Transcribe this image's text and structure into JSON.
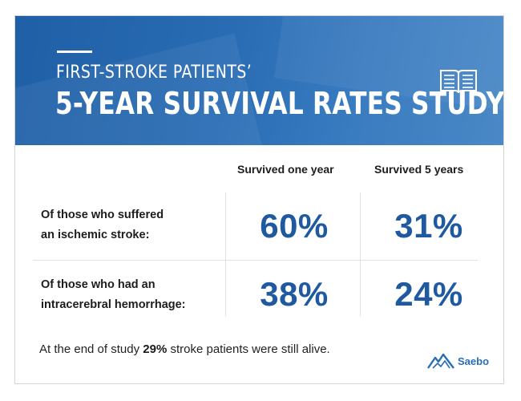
{
  "header": {
    "title_line1": "FIRST-STROKE PATIENTS’",
    "title_line2": "5-YEAR SURVIVAL RATES STUDY",
    "icon": "open-book-icon"
  },
  "table": {
    "columns": [
      "Survived one year",
      "Survived 5 years"
    ],
    "rows": [
      {
        "label_line1": "Of those who suffered",
        "label_line2": "an ischemic stroke:",
        "values": [
          "60%",
          "31%"
        ]
      },
      {
        "label_line1": "Of those who had an",
        "label_line2": "intracerebral hemorrhage:",
        "values": [
          "38%",
          "24%"
        ]
      }
    ]
  },
  "footer": {
    "text_before": "At the end of study ",
    "highlight": "29%",
    "text_after": " stroke patients were still alive."
  },
  "logo": {
    "name": "Saebo",
    "icon": "mountain-logo-icon"
  },
  "colors": {
    "header_blue": "#2a6db5",
    "value_blue": "#1f5aa0"
  }
}
